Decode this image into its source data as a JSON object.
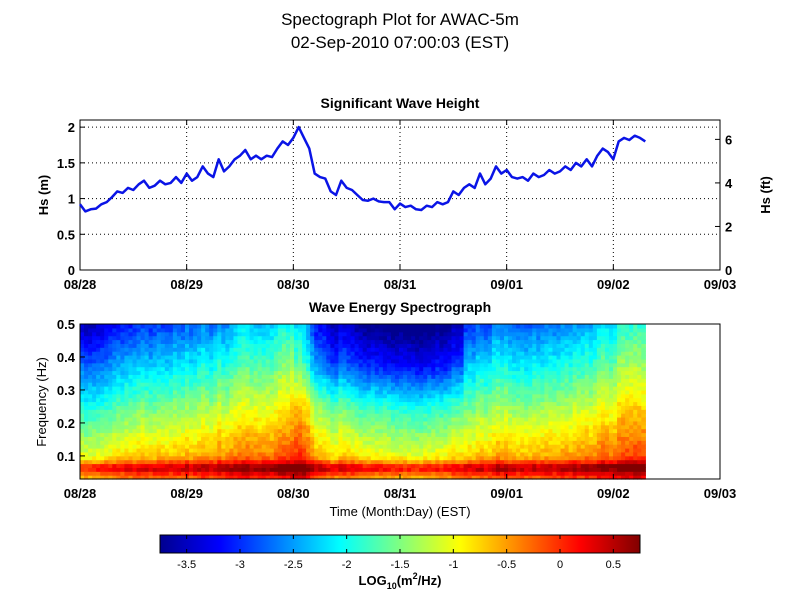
{
  "header": {
    "title_line1": "Spectograph Plot for AWAC-5m",
    "title_line2": "02-Sep-2010 07:00:03 (EST)"
  },
  "colors": {
    "line": "#0a14e6",
    "colormap": [
      "#00008f",
      "#0000ff",
      "#0080ff",
      "#00ffff",
      "#80ff80",
      "#ffff00",
      "#ff8000",
      "#ff0000",
      "#800000"
    ]
  },
  "chart_data": [
    {
      "type": "line",
      "title": "Significant Wave Height",
      "xlabel": "",
      "ylabel": "Hs (m)",
      "ylabel_right": "Hs (ft)",
      "x_tick_labels": [
        "08/28",
        "08/29",
        "08/30",
        "08/31",
        "09/01",
        "09/02",
        "09/03"
      ],
      "xlim_days": [
        0,
        6
      ],
      "ylim": [
        0,
        2.1
      ],
      "y_ticks": [
        0,
        0.5,
        1,
        1.5,
        2
      ],
      "y_tick_labels": [
        "0",
        "0.5",
        "1",
        "1.5",
        "2"
      ],
      "y_ticks_right_ft": [
        0,
        2,
        4,
        6
      ],
      "y_tick_labels_right": [
        "0",
        "2",
        "4",
        "6"
      ],
      "grid": true,
      "series": [
        {
          "name": "Hs",
          "x_days": [
            0.0,
            0.05,
            0.1,
            0.15,
            0.2,
            0.25,
            0.3,
            0.35,
            0.4,
            0.45,
            0.5,
            0.55,
            0.6,
            0.65,
            0.7,
            0.75,
            0.8,
            0.85,
            0.9,
            0.95,
            1.0,
            1.05,
            1.1,
            1.15,
            1.2,
            1.25,
            1.3,
            1.35,
            1.4,
            1.45,
            1.5,
            1.55,
            1.6,
            1.65,
            1.7,
            1.75,
            1.8,
            1.85,
            1.9,
            1.95,
            2.0,
            2.05,
            2.1,
            2.15,
            2.2,
            2.25,
            2.3,
            2.35,
            2.4,
            2.45,
            2.5,
            2.55,
            2.6,
            2.65,
            2.7,
            2.75,
            2.8,
            2.85,
            2.9,
            2.95,
            3.0,
            3.05,
            3.1,
            3.15,
            3.2,
            3.25,
            3.3,
            3.35,
            3.4,
            3.45,
            3.5,
            3.55,
            3.6,
            3.65,
            3.7,
            3.75,
            3.8,
            3.85,
            3.9,
            3.95,
            4.0,
            4.05,
            4.1,
            4.15,
            4.2,
            4.25,
            4.3,
            4.35,
            4.4,
            4.45,
            4.5,
            4.55,
            4.6,
            4.65,
            4.7,
            4.75,
            4.8,
            4.85,
            4.9,
            4.95,
            5.0,
            5.05,
            5.1,
            5.15,
            5.2,
            5.25,
            5.3
          ],
          "values": [
            0.92,
            0.82,
            0.85,
            0.86,
            0.92,
            0.95,
            1.02,
            1.1,
            1.08,
            1.15,
            1.12,
            1.2,
            1.25,
            1.15,
            1.18,
            1.25,
            1.2,
            1.22,
            1.3,
            1.22,
            1.35,
            1.25,
            1.3,
            1.45,
            1.35,
            1.3,
            1.55,
            1.38,
            1.45,
            1.55,
            1.6,
            1.68,
            1.55,
            1.6,
            1.55,
            1.6,
            1.58,
            1.7,
            1.8,
            1.75,
            1.85,
            2.0,
            1.85,
            1.7,
            1.35,
            1.3,
            1.28,
            1.1,
            1.05,
            1.25,
            1.15,
            1.12,
            1.05,
            0.98,
            0.97,
            1.0,
            0.96,
            0.95,
            0.95,
            0.85,
            0.93,
            0.88,
            0.9,
            0.85,
            0.84,
            0.9,
            0.88,
            0.95,
            0.92,
            0.95,
            1.1,
            1.05,
            1.15,
            1.2,
            1.15,
            1.35,
            1.2,
            1.28,
            1.45,
            1.35,
            1.4,
            1.3,
            1.28,
            1.3,
            1.25,
            1.35,
            1.3,
            1.33,
            1.4,
            1.35,
            1.38,
            1.45,
            1.4,
            1.5,
            1.45,
            1.55,
            1.45,
            1.6,
            1.7,
            1.65,
            1.55,
            1.8,
            1.85,
            1.82,
            1.88,
            1.85,
            1.8
          ]
        }
      ]
    },
    {
      "type": "heatmap",
      "title": "Wave Energy Spectrograph",
      "xlabel": "Time (Month:Day) (EST)",
      "ylabel": "Frequency (Hz)",
      "x_tick_labels": [
        "08/28",
        "08/29",
        "08/30",
        "08/31",
        "09/01",
        "09/02",
        "09/03"
      ],
      "xlim_days": [
        0,
        6
      ],
      "data_extent_days": [
        0,
        5.3
      ],
      "ylim": [
        0.03,
        0.5
      ],
      "y_ticks": [
        0.1,
        0.2,
        0.3,
        0.4,
        0.5
      ],
      "y_tick_labels": [
        "0.1",
        "0.2",
        "0.3",
        "0.4",
        "0.5"
      ],
      "colorbar": {
        "label_main": "LOG",
        "label_sub": "10",
        "label_tail": "(m",
        "label_sup": "2",
        "label_end": "/Hz)",
        "clim": [
          -3.75,
          0.75
        ],
        "ticks": [
          -3.5,
          -3,
          -2.5,
          -2,
          -1.5,
          -1,
          -0.5,
          0,
          0.5
        ],
        "tick_labels": [
          "-3.5",
          "-3",
          "-2.5",
          "-2",
          "-1.5",
          "-1",
          "-0.5",
          "0",
          "0.5"
        ]
      }
    }
  ]
}
